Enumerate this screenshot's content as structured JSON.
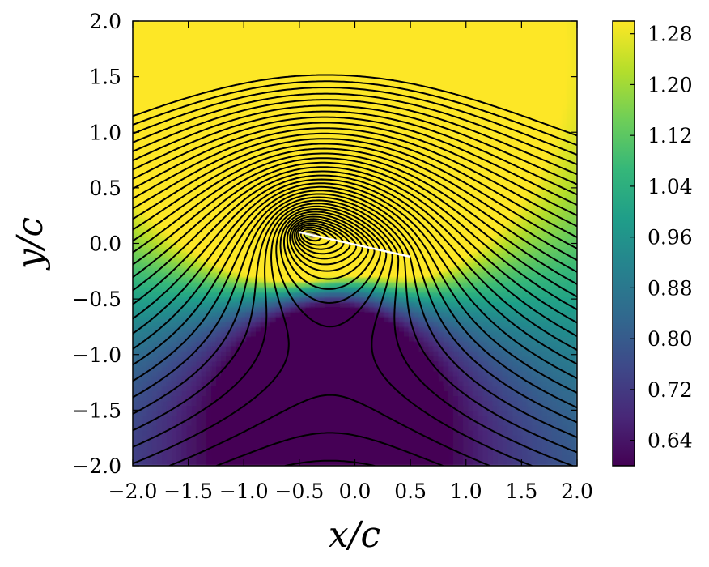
{
  "chart_data": {
    "type": "heatmap",
    "description_kind": "flow-field",
    "xlabel": "x/c",
    "ylabel": "y/c",
    "xlim": [
      -2.0,
      2.0
    ],
    "ylim": [
      -2.0,
      2.0
    ],
    "x_ticks": [
      -2.0,
      -1.5,
      -1.0,
      -0.5,
      0.0,
      0.5,
      1.0,
      1.5,
      2.0
    ],
    "x_tick_labels": [
      "−2.0",
      "−1.5",
      "−1.0",
      "−0.5",
      "0.0",
      "0.5",
      "1.0",
      "1.5",
      "2.0"
    ],
    "y_ticks": [
      2.0,
      1.5,
      1.0,
      0.5,
      0.0,
      -0.5,
      -1.0,
      -1.5,
      -2.0
    ],
    "y_tick_labels": [
      "2.0",
      "1.5",
      "1.0",
      "0.5",
      "0.0",
      "−0.5",
      "−1.0",
      "−1.5",
      "−2.0"
    ],
    "colorbar": {
      "colormap": "viridis",
      "vmin": 0.6,
      "vmax": 1.3,
      "ticks": [
        1.28,
        1.2,
        1.12,
        1.04,
        0.96,
        0.88,
        0.8,
        0.72,
        0.64
      ],
      "tick_labels": [
        "1.28",
        "1.20",
        "1.12",
        "1.04",
        "0.96",
        "0.88",
        "0.80",
        "0.72",
        "0.64"
      ],
      "stops": [
        "#440154",
        "#482878",
        "#3e4989",
        "#31688e",
        "#26828e",
        "#1f9e89",
        "#35b779",
        "#6ece58",
        "#b5de2b",
        "#fde725"
      ]
    },
    "freestream_value": 1.0,
    "plate": {
      "leading_edge": [
        -0.5,
        0.1
      ],
      "trailing_edge": [
        0.5,
        -0.12
      ],
      "color": "#ffffff"
    },
    "streamline_count": 40,
    "streamline_color": "#000000"
  }
}
